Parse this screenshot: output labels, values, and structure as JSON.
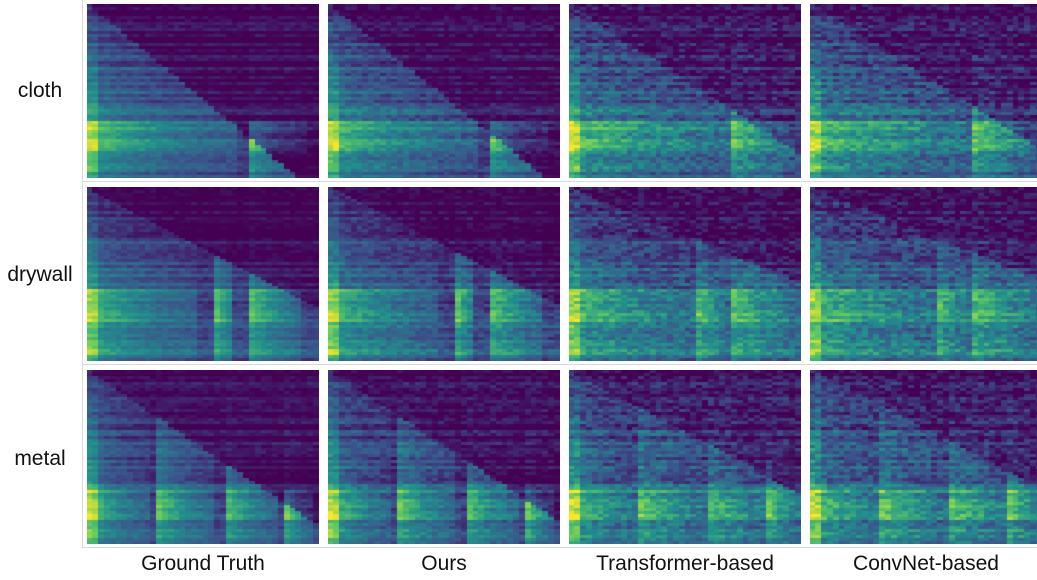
{
  "rows": [
    {
      "label": "cloth"
    },
    {
      "label": "drywall"
    },
    {
      "label": "metal"
    }
  ],
  "columns": [
    {
      "label": "Ground Truth"
    },
    {
      "label": "Ours"
    },
    {
      "label": "Transformer-based"
    },
    {
      "label": "ConvNet-based"
    }
  ],
  "colormap": [
    "#440154",
    "#3b528b",
    "#21918c",
    "#5ec962",
    "#fde725"
  ]
}
